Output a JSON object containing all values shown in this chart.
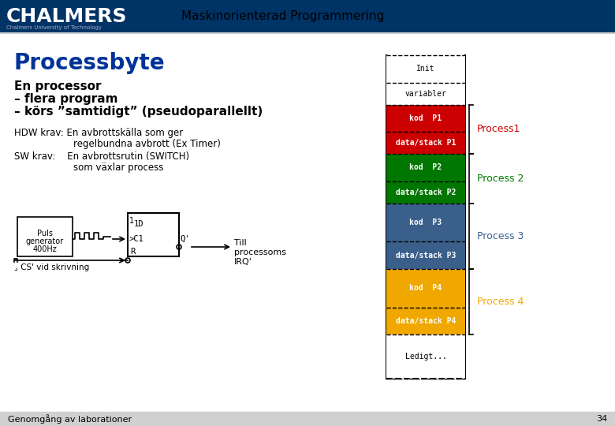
{
  "title": "Maskinorienterad Programmering",
  "slide_title": "Processbyte",
  "chalmers_blue": "#003366",
  "chalmers_text": "CHALMERS",
  "subtitle_text": "Chalmers University of Technology",
  "main_text_line1": "En processor",
  "main_text_line2": "– flera program",
  "main_text_line3": "– körs ”samtidigt” (pseudoparallellt)",
  "hdw_text": "HDW krav: En avbrottskälla som ger\n                    regelbundna avbrott (Ex Timer)",
  "sw_text": "SW krav:    En avbrottsrutin (SWITCH)\n                    som växlar process",
  "bottom_text": "Genomgång av laborationer",
  "page_number": "34",
  "memory_blocks": [
    {
      "label": "Init",
      "color": "#ffffff",
      "text_color": "#000000",
      "font": "monospace",
      "dashed_top": true,
      "dashed_bottom": true
    },
    {
      "label": "variabler",
      "color": "#ffffff",
      "text_color": "#000000",
      "font": "monospace",
      "dashed_top": false,
      "dashed_bottom": true
    },
    {
      "label": "kod  P1",
      "color": "#cc0000",
      "text_color": "#ffffff",
      "font": "monospace",
      "dashed_top": false,
      "dashed_bottom": true
    },
    {
      "label": "data/stack P1",
      "color": "#cc0000",
      "text_color": "#ffffff",
      "font": "monospace",
      "dashed_top": false,
      "dashed_bottom": true
    },
    {
      "label": "kod  P2",
      "color": "#007700",
      "text_color": "#ffffff",
      "font": "monospace",
      "dashed_top": false,
      "dashed_bottom": true
    },
    {
      "label": "data/stack P2",
      "color": "#007700",
      "text_color": "#ffffff",
      "font": "monospace",
      "dashed_top": false,
      "dashed_bottom": true
    },
    {
      "label": "kod  P3",
      "color": "#3a5f8a",
      "text_color": "#ffffff",
      "font": "monospace",
      "dashed_top": false,
      "dashed_bottom": true
    },
    {
      "label": "data/stack P3",
      "color": "#3a5f8a",
      "text_color": "#ffffff",
      "font": "monospace",
      "dashed_top": false,
      "dashed_bottom": true
    },
    {
      "label": "kod  P4",
      "color": "#f0a800",
      "text_color": "#ffffff",
      "font": "monospace",
      "dashed_top": false,
      "dashed_bottom": true
    },
    {
      "label": "data/stack P4",
      "color": "#f0a800",
      "text_color": "#ffffff",
      "font": "monospace",
      "dashed_top": false,
      "dashed_bottom": true
    },
    {
      "label": "Ledigt...",
      "color": "#ffffff",
      "text_color": "#000000",
      "font": "monospace",
      "dashed_top": false,
      "dashed_bottom": true
    }
  ],
  "process_labels": [
    {
      "label": "Process1",
      "color": "#cc0000",
      "block_indices": [
        2,
        3
      ]
    },
    {
      "label": "Process 2",
      "color": "#007700",
      "block_indices": [
        4,
        5
      ]
    },
    {
      "label": "Process 3",
      "color": "#3a5f8a",
      "block_indices": [
        6,
        7
      ]
    },
    {
      "label": "Process 4",
      "color": "#f0a800",
      "block_indices": [
        8,
        9
      ]
    }
  ]
}
